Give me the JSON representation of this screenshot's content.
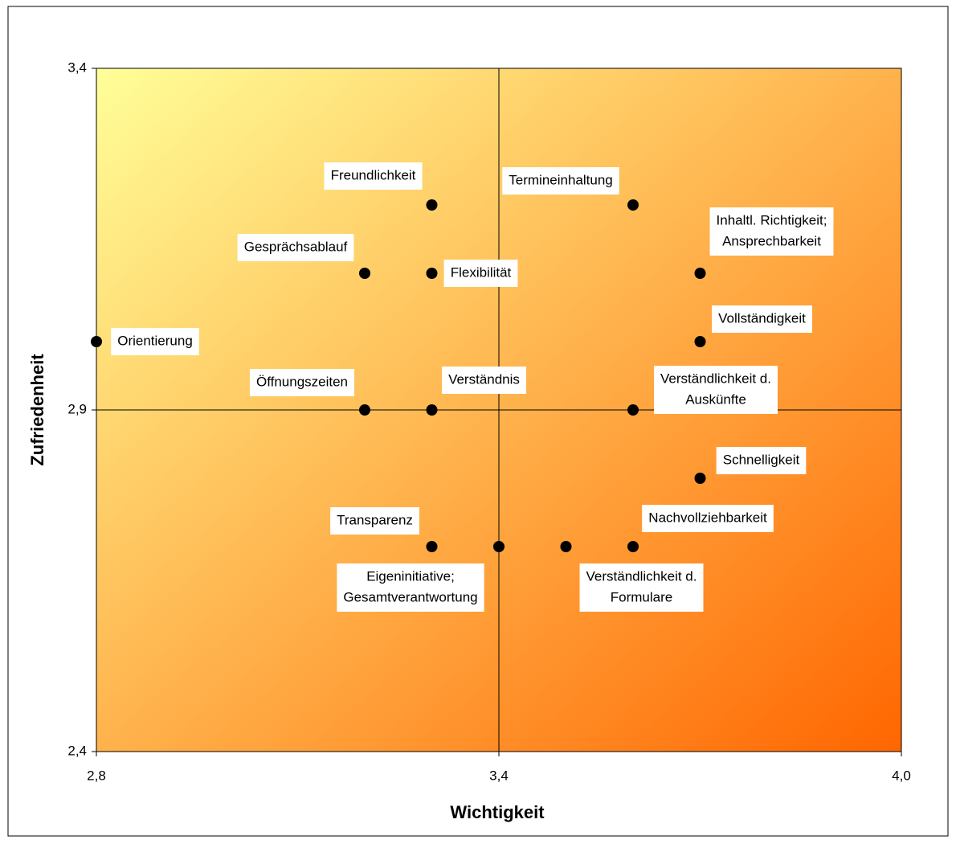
{
  "chart_data": {
    "type": "scatter",
    "x_label": "Wichtigkeit",
    "y_label": "Zufriedenheit",
    "xlim": [
      2.8,
      4.0
    ],
    "ylim": [
      2.4,
      3.4
    ],
    "xticks": [
      {
        "value": 2.8,
        "label": "2,8"
      },
      {
        "value": 3.4,
        "label": "3,4"
      },
      {
        "value": 4.0,
        "label": "4,0"
      }
    ],
    "yticks": [
      {
        "value": 2.4,
        "label": "2,4"
      },
      {
        "value": 2.9,
        "label": "2,9"
      },
      {
        "value": 3.4,
        "label": "3,4"
      }
    ],
    "color": "#000000",
    "labels": [
      [
        "Freundlichkeit"
      ],
      [
        "Termineinhaltung"
      ],
      [
        "Gesprächsablauf"
      ],
      [
        "Flexibilität"
      ],
      [
        "Inhaltl. Richtigkeit;",
        "Ansprechbarkeit"
      ],
      [
        "Orientierung"
      ],
      [
        "Vollständigkeit"
      ],
      [
        "Öffnungszeiten"
      ],
      [
        "Verständnis"
      ],
      [
        "Verständlichkeit d.",
        "Auskünfte"
      ],
      [
        "Schnelligkeit"
      ],
      [
        "Transparenz"
      ],
      [
        "Eigeninitiative;",
        "Gesamtverantwortung"
      ],
      [
        "Verständlichkeit d.",
        "Formulare"
      ],
      [
        "Nachvollziehbarkeit"
      ]
    ],
    "x": [
      3.3,
      3.6,
      3.2,
      3.3,
      3.7,
      2.8,
      3.7,
      3.2,
      3.3,
      3.6,
      3.7,
      3.3,
      3.4,
      3.5,
      3.6
    ],
    "values": [
      3.2,
      3.2,
      3.1,
      3.1,
      3.1,
      3.0,
      3.0,
      2.9,
      2.9,
      2.9,
      2.8,
      2.7,
      2.7,
      2.7,
      2.7
    ]
  }
}
